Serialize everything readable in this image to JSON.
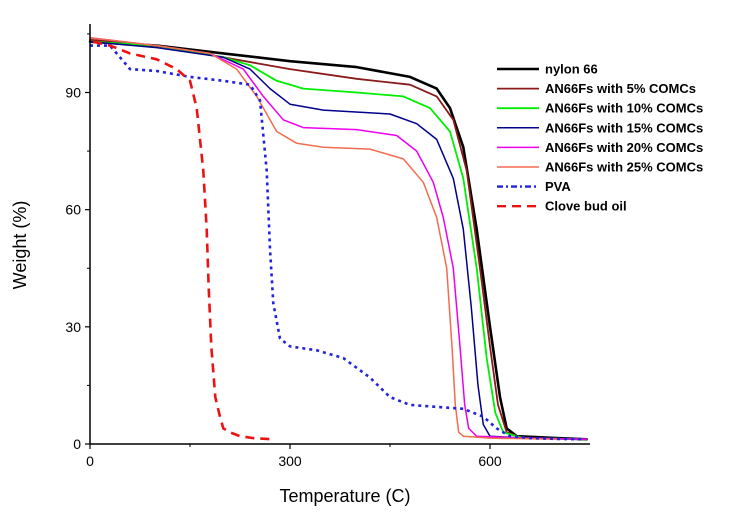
{
  "chart_data": {
    "type": "line",
    "title": "",
    "xlabel": "Temperature (C)",
    "ylabel": "Weight (%)",
    "xlim": [
      0,
      750
    ],
    "ylim": [
      0,
      106
    ],
    "xticks": [
      0,
      300,
      600
    ],
    "yticks": [
      0,
      30,
      60,
      90
    ],
    "grid": false,
    "legend": "top-right",
    "series": [
      {
        "name": "nylon 66",
        "color": "#000000",
        "dash": "solid",
        "width": 2.6,
        "points": [
          [
            0,
            103
          ],
          [
            100,
            102
          ],
          [
            200,
            100
          ],
          [
            300,
            98
          ],
          [
            400,
            96.5
          ],
          [
            480,
            94
          ],
          [
            520,
            91
          ],
          [
            540,
            86
          ],
          [
            560,
            76
          ],
          [
            580,
            55
          ],
          [
            600,
            30
          ],
          [
            615,
            12
          ],
          [
            625,
            4
          ],
          [
            640,
            2
          ],
          [
            700,
            1.5
          ],
          [
            745,
            1.2
          ]
        ]
      },
      {
        "name": "AN66Fs with 5% COMCs",
        "color": "#8b1a1a",
        "dash": "solid",
        "width": 1.8,
        "points": [
          [
            0,
            103.5
          ],
          [
            100,
            102
          ],
          [
            200,
            99
          ],
          [
            250,
            97.5
          ],
          [
            300,
            96
          ],
          [
            400,
            93.5
          ],
          [
            480,
            92
          ],
          [
            520,
            89
          ],
          [
            545,
            83
          ],
          [
            565,
            70
          ],
          [
            585,
            45
          ],
          [
            600,
            25
          ],
          [
            612,
            10
          ],
          [
            625,
            3
          ],
          [
            650,
            1.5
          ],
          [
            745,
            1.2
          ]
        ]
      },
      {
        "name": "AN66Fs with 10% COMCs",
        "color": "#00ee00",
        "dash": "solid",
        "width": 1.8,
        "points": [
          [
            0,
            103
          ],
          [
            100,
            102
          ],
          [
            200,
            99
          ],
          [
            240,
            97
          ],
          [
            280,
            93
          ],
          [
            320,
            91
          ],
          [
            400,
            90
          ],
          [
            470,
            89
          ],
          [
            510,
            86
          ],
          [
            540,
            80
          ],
          [
            560,
            68
          ],
          [
            580,
            45
          ],
          [
            595,
            22
          ],
          [
            608,
            8
          ],
          [
            620,
            3
          ],
          [
            650,
            1.5
          ],
          [
            745,
            1.2
          ]
        ]
      },
      {
        "name": "AN66Fs with 15% COMCs",
        "color": "#00008b",
        "dash": "solid",
        "width": 1.5,
        "points": [
          [
            0,
            103
          ],
          [
            100,
            101.5
          ],
          [
            200,
            99
          ],
          [
            240,
            96
          ],
          [
            270,
            91
          ],
          [
            300,
            87
          ],
          [
            350,
            85.5
          ],
          [
            450,
            84.5
          ],
          [
            490,
            82
          ],
          [
            520,
            78
          ],
          [
            545,
            68
          ],
          [
            560,
            55
          ],
          [
            572,
            35
          ],
          [
            582,
            15
          ],
          [
            590,
            5
          ],
          [
            600,
            2
          ],
          [
            650,
            1.5
          ],
          [
            745,
            1.2
          ]
        ]
      },
      {
        "name": "AN66Fs with 20% COMCs",
        "color": "#ee00ee",
        "dash": "solid",
        "width": 1.5,
        "points": [
          [
            0,
            104
          ],
          [
            100,
            102
          ],
          [
            180,
            100
          ],
          [
            230,
            96
          ],
          [
            260,
            89
          ],
          [
            290,
            83
          ],
          [
            320,
            81
          ],
          [
            400,
            80.5
          ],
          [
            460,
            79
          ],
          [
            490,
            75
          ],
          [
            515,
            67
          ],
          [
            530,
            58
          ],
          [
            545,
            45
          ],
          [
            555,
            25
          ],
          [
            562,
            10
          ],
          [
            568,
            4
          ],
          [
            580,
            2
          ],
          [
            650,
            1.5
          ],
          [
            745,
            1.2
          ]
        ]
      },
      {
        "name": "AN66Fs with 25% COMCs",
        "color": "#f26c4f",
        "dash": "solid",
        "width": 1.5,
        "points": [
          [
            0,
            104
          ],
          [
            100,
            102
          ],
          [
            180,
            100
          ],
          [
            220,
            96
          ],
          [
            250,
            89
          ],
          [
            280,
            80
          ],
          [
            310,
            77
          ],
          [
            350,
            76
          ],
          [
            420,
            75.5
          ],
          [
            470,
            73
          ],
          [
            500,
            67
          ],
          [
            520,
            58
          ],
          [
            535,
            45
          ],
          [
            543,
            25
          ],
          [
            548,
            10
          ],
          [
            553,
            3
          ],
          [
            560,
            2
          ],
          [
            600,
            1.5
          ],
          [
            700,
            1.2
          ]
        ]
      },
      {
        "name": "PVA",
        "color": "#2222dd",
        "dash": "dot",
        "width": 2.6,
        "points": [
          [
            0,
            102
          ],
          [
            30,
            102
          ],
          [
            50,
            98
          ],
          [
            60,
            96
          ],
          [
            100,
            95.5
          ],
          [
            150,
            94
          ],
          [
            200,
            93
          ],
          [
            240,
            92
          ],
          [
            255,
            88
          ],
          [
            265,
            70
          ],
          [
            270,
            50
          ],
          [
            275,
            36
          ],
          [
            285,
            27
          ],
          [
            300,
            25
          ],
          [
            340,
            24
          ],
          [
            380,
            22
          ],
          [
            420,
            17
          ],
          [
            450,
            12
          ],
          [
            480,
            10
          ],
          [
            520,
            9.5
          ],
          [
            560,
            9
          ],
          [
            590,
            7
          ],
          [
            610,
            4
          ],
          [
            630,
            2
          ],
          [
            660,
            1.5
          ],
          [
            700,
            1.3
          ],
          [
            740,
            1.2
          ]
        ]
      },
      {
        "name": "Clove bud oil",
        "color": "#ee1111",
        "dash": "dash",
        "width": 2.6,
        "points": [
          [
            5,
            103
          ],
          [
            30,
            102
          ],
          [
            60,
            100
          ],
          [
            100,
            98.5
          ],
          [
            130,
            96
          ],
          [
            150,
            93
          ],
          [
            160,
            86
          ],
          [
            170,
            70
          ],
          [
            175,
            55
          ],
          [
            178,
            40
          ],
          [
            182,
            25
          ],
          [
            188,
            12
          ],
          [
            195,
            7
          ],
          [
            200,
            4
          ],
          [
            210,
            3
          ],
          [
            225,
            2
          ],
          [
            245,
            1.5
          ],
          [
            275,
            1.2
          ]
        ]
      }
    ]
  }
}
